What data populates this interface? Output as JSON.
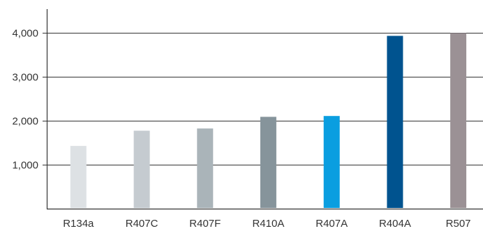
{
  "chart_data": {
    "type": "bar",
    "title": "",
    "xlabel": "",
    "ylabel": "",
    "categories": [
      "R134a",
      "R407C",
      "R407F",
      "R410A",
      "R407A",
      "R404A",
      "R507"
    ],
    "values": [
      1430,
      1774,
      1825,
      2088,
      2107,
      3922,
      3985
    ],
    "ylim": [
      0,
      4000
    ],
    "yticks": [
      1000,
      2000,
      3000,
      4000
    ],
    "ytick_labels": [
      "1,000",
      "2,000",
      "3,000",
      "4,000"
    ],
    "grid": true,
    "colors": [
      "#dde1e4",
      "#c5cbd0",
      "#aab4b9",
      "#86949b",
      "#0a9ee0",
      "#00538f",
      "#9b9195"
    ],
    "axis_color": "#333333",
    "grid_color": "#333333"
  }
}
